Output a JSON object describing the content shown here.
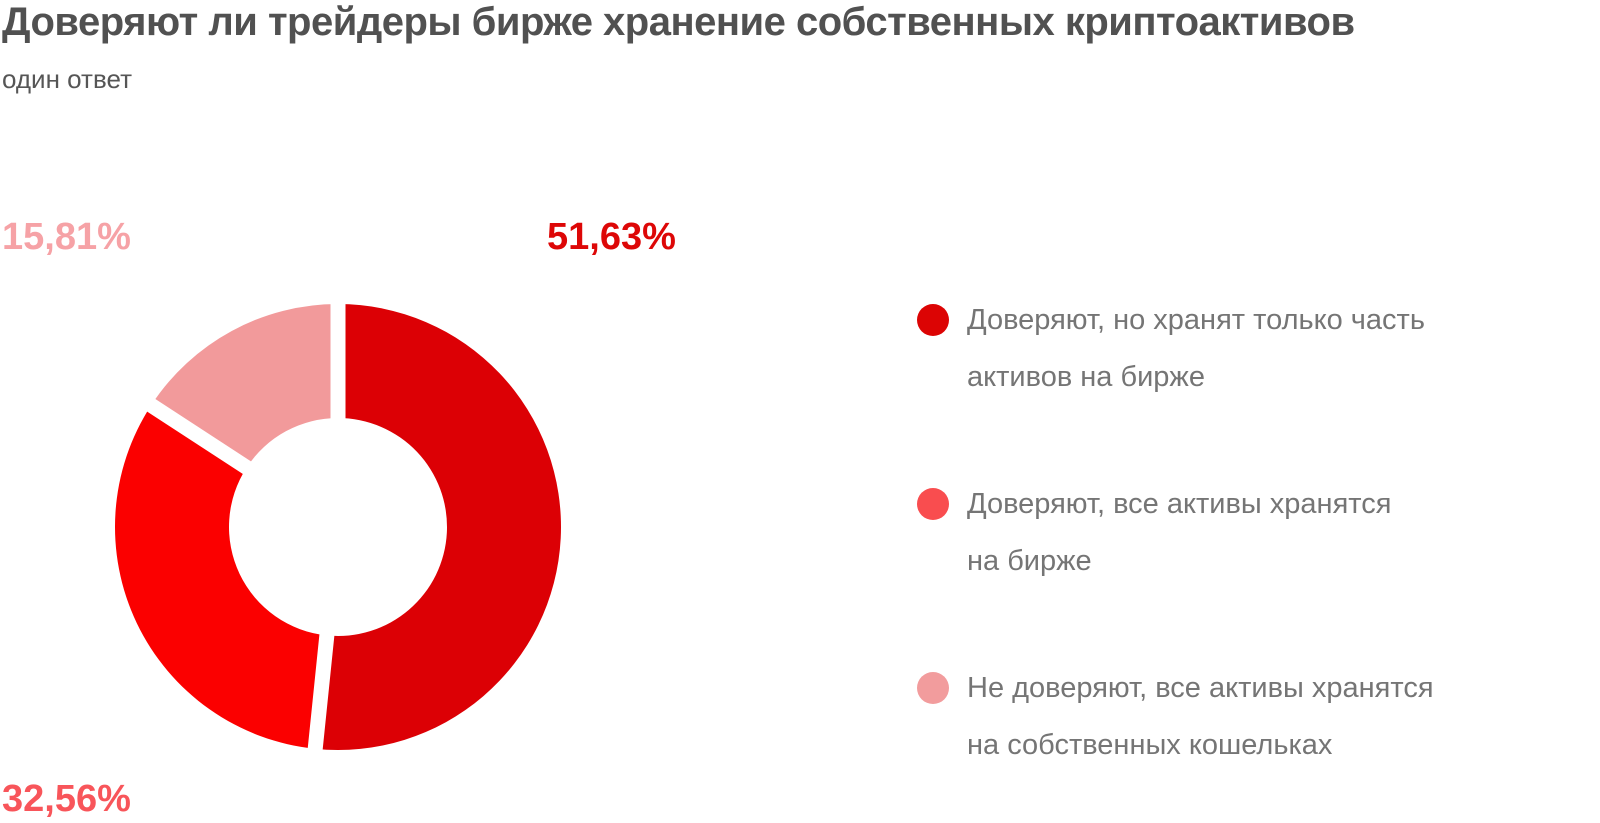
{
  "header": {
    "title": "Доверяют ли трейдеры бирже хранение собственных криптоактивов",
    "subtitle": "один ответ"
  },
  "chart_data": {
    "type": "pie",
    "donut": true,
    "title": "Доверяют ли трейдеры бирже хранение собственных криптоактивов",
    "subtitle": "один ответ",
    "start_angle_deg": 0,
    "direction": "clockwise",
    "divider_color": "#ffffff",
    "segments": [
      {
        "label": "Доверяют, но хранят только часть активов на бирже",
        "value_pct": 51.63,
        "value_label": "51,63%",
        "color": "#dc0005",
        "label_color": "#dd0707"
      },
      {
        "label": "Доверяют, все активы хранятся на бирже",
        "value_pct": 32.56,
        "value_label": "32,56%",
        "color": "#fb0000",
        "label_color": "#f8555a"
      },
      {
        "label": "Не доверяют, все активы хранятся на собственных кошельках",
        "value_pct": 15.81,
        "value_label": "15,81%",
        "color": "#f29a9b",
        "label_color": "#f6a2a6"
      }
    ]
  },
  "legend": {
    "items": [
      {
        "dot_color": "#dc0404",
        "lines": [
          "Доверяют, но хранят только часть",
          "активов на бирже"
        ]
      },
      {
        "dot_color": "#f94d4f",
        "lines": [
          "Доверяют, все активы хранятся",
          "на бирже"
        ]
      },
      {
        "dot_color": "#f29c9d",
        "lines": [
          "Не доверяют, все активы хранятся",
          "на собственных  кошельках"
        ]
      }
    ]
  }
}
